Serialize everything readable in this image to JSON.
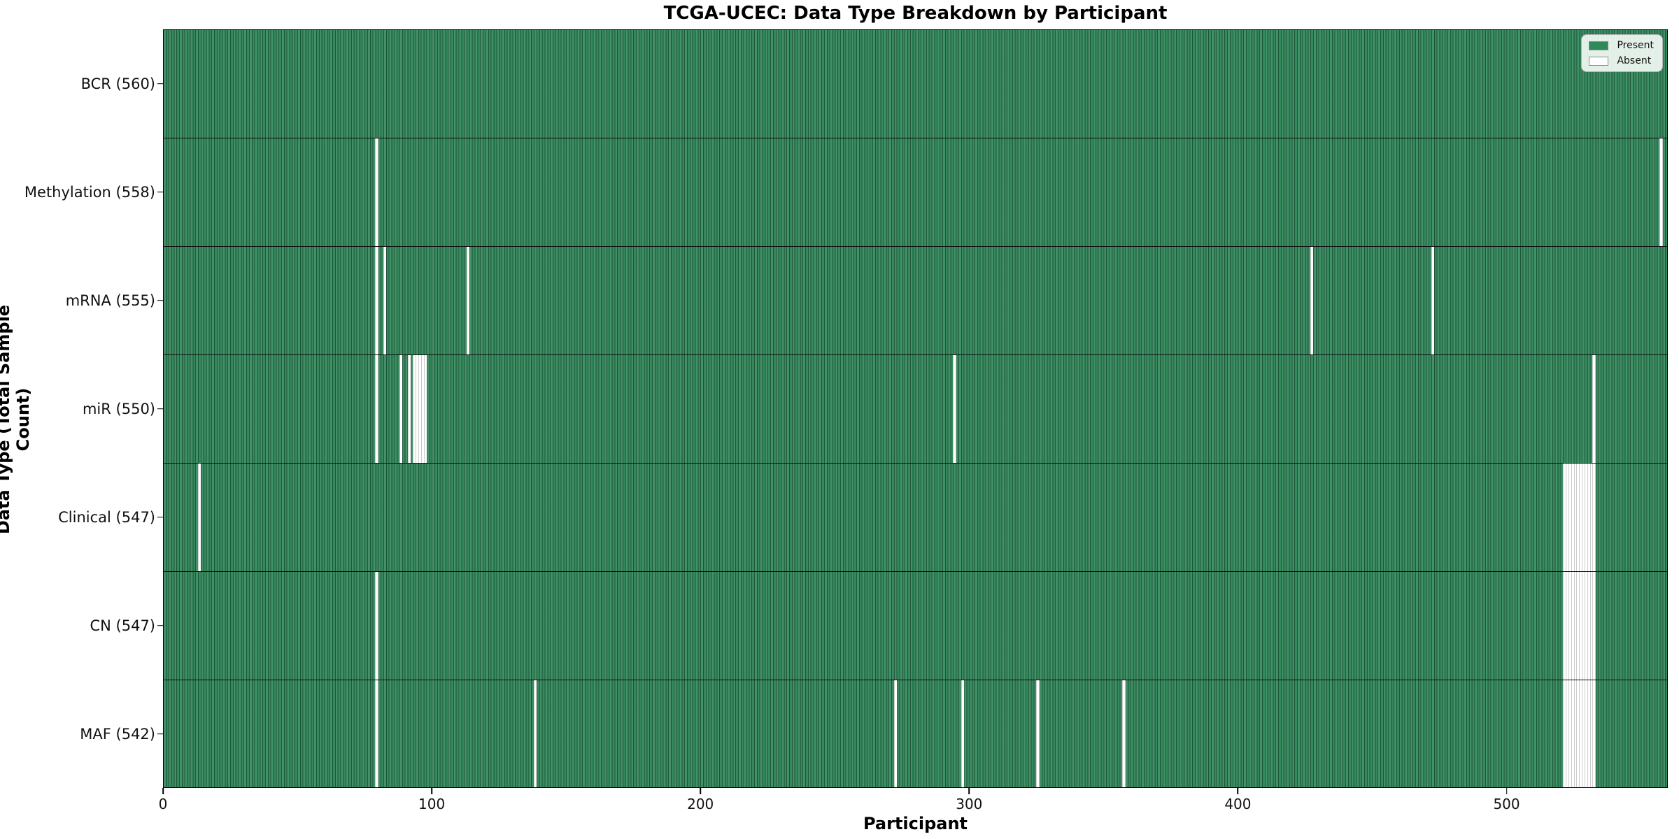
{
  "chart_data": {
    "type": "heatmap",
    "title": "TCGA-UCEC: Data Type Breakdown by Participant",
    "xlabel": "Participant",
    "ylabel": "Data Type (Total Sample Count)",
    "x_ticks": [
      0,
      100,
      200,
      300,
      400,
      500
    ],
    "x_range": [
      0,
      560
    ],
    "n_participants": 560,
    "cell_states": {
      "present_value": 1,
      "absent_value": 0
    },
    "rows": [
      {
        "name": "BCR",
        "label": "BCR (560)",
        "present_count": 560,
        "missing_participants": []
      },
      {
        "name": "Methylation",
        "label": "Methylation (558)",
        "present_count": 558,
        "missing_participants": [
          79,
          557
        ]
      },
      {
        "name": "mRNA",
        "label": "mRNA (555)",
        "present_count": 555,
        "missing_participants": [
          79,
          82,
          113,
          427,
          472
        ]
      },
      {
        "name": "miR",
        "label": "miR (550)",
        "present_count": 550,
        "missing_participants": [
          79,
          88,
          91,
          93,
          94,
          95,
          96,
          97,
          294,
          532
        ]
      },
      {
        "name": "Clinical",
        "label": "Clinical (547)",
        "present_count": 547,
        "missing_participants": [
          13,
          521,
          522,
          523,
          524,
          525,
          526,
          527,
          528,
          529,
          530,
          531,
          532
        ]
      },
      {
        "name": "CN",
        "label": "CN (547)",
        "present_count": 547,
        "missing_participants": [
          79,
          521,
          522,
          523,
          524,
          525,
          526,
          527,
          528,
          529,
          530,
          531,
          532
        ]
      },
      {
        "name": "MAF",
        "label": "MAF (542)",
        "present_count": 542,
        "missing_participants": [
          79,
          138,
          272,
          297,
          325,
          357,
          521,
          522,
          523,
          524,
          525,
          526,
          527,
          528,
          529,
          530,
          531,
          532
        ]
      }
    ],
    "legend": [
      {
        "label": "Present",
        "color": "#2f8a58"
      },
      {
        "label": "Absent",
        "color": "#ffffff"
      }
    ],
    "colors": {
      "present": "#35895c",
      "absent": "#ffffff",
      "cell_edge": "#0d3b24",
      "axis": "#000000"
    },
    "legend_position": "upper right",
    "grid": false
  }
}
